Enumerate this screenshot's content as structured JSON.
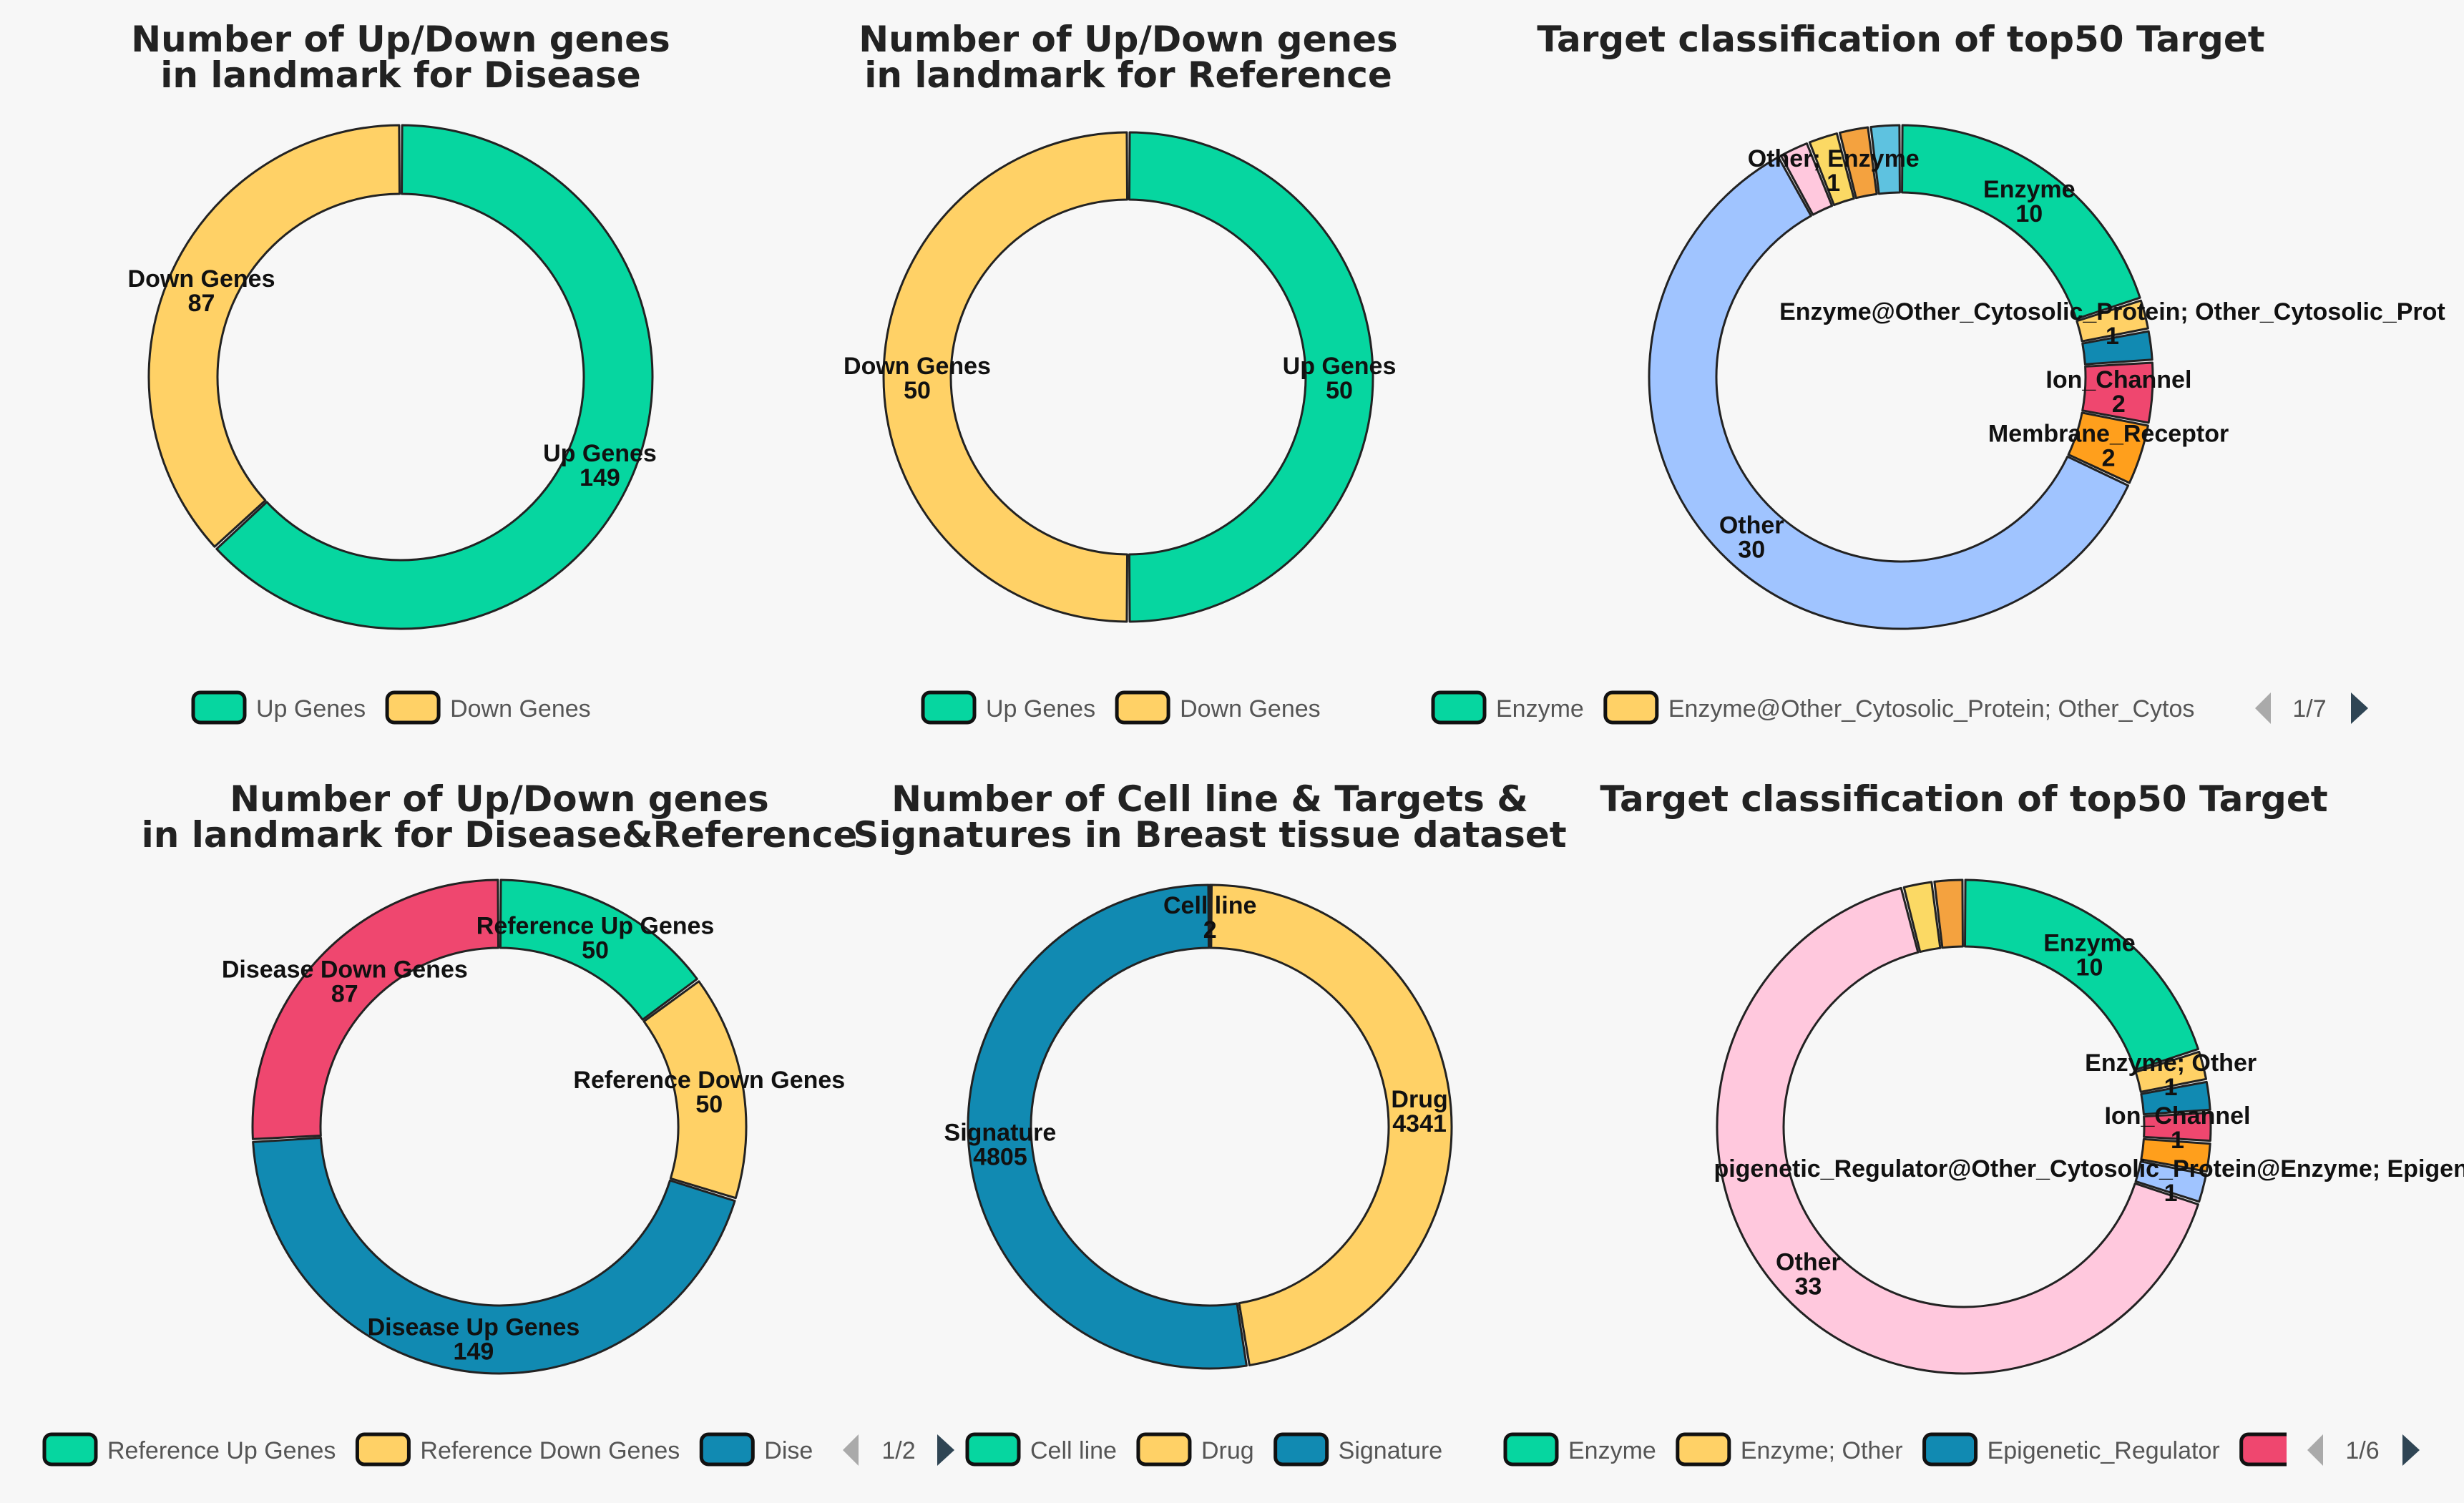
{
  "chart_data": [
    {
      "type": "pie",
      "variant": "donut",
      "title": [
        "Number of Up/Down genes",
        "in landmark for Disease"
      ],
      "segments": [
        {
          "name": "Up Genes",
          "value": 149,
          "color": "#06d6a0"
        },
        {
          "name": "Down Genes",
          "value": 87,
          "color": "#ffd166"
        }
      ],
      "legend": [
        {
          "label": "Up Genes",
          "color": "#06d6a0"
        },
        {
          "label": "Down Genes",
          "color": "#ffd166"
        }
      ],
      "legend_page": null
    },
    {
      "type": "pie",
      "variant": "donut",
      "title": [
        "Number of Up/Down genes",
        "in landmark for Reference"
      ],
      "segments": [
        {
          "name": "Up Genes",
          "value": 50,
          "color": "#06d6a0"
        },
        {
          "name": "Down Genes",
          "value": 50,
          "color": "#ffd166"
        }
      ],
      "legend": [
        {
          "label": "Up Genes",
          "color": "#06d6a0"
        },
        {
          "label": "Down Genes",
          "color": "#ffd166"
        }
      ],
      "legend_page": null
    },
    {
      "type": "pie",
      "variant": "donut",
      "title": [
        "Target classification of top50 Target"
      ],
      "segments": [
        {
          "name": "Enzyme",
          "value": 10,
          "color": "#06d6a0"
        },
        {
          "name": "Enzyme@Other_Cytosolic_Protein; Other_Cytosolic_Prot",
          "value": 1,
          "color": "#ffd166"
        },
        {
          "name": "",
          "value": 1,
          "color": "#118ab2"
        },
        {
          "name": "Ion_Channel",
          "value": 2,
          "color": "#ef476f"
        },
        {
          "name": "Membrane_Receptor",
          "value": 2,
          "color": "#ff9f1c"
        },
        {
          "name": "Other",
          "value": 30,
          "color": "#a0c4ff"
        },
        {
          "name": "",
          "value": 1,
          "color": "#ffc8dd"
        },
        {
          "name": "Other; Enzyme",
          "value": 1,
          "color": "#fbd964"
        },
        {
          "name": "",
          "value": 1,
          "color": "#f4a23f"
        },
        {
          "name": "",
          "value": 1,
          "color": "#5ec2e0"
        }
      ],
      "legend": [
        {
          "label": "Enzyme",
          "color": "#06d6a0"
        },
        {
          "label": "Enzyme@Other_Cytosolic_Protein; Other_Cytos",
          "color": "#ffd166"
        }
      ],
      "legend_page": "1/7"
    },
    {
      "type": "pie",
      "variant": "donut",
      "title": [
        "Number of Up/Down genes",
        "in landmark for Disease&Reference"
      ],
      "segments": [
        {
          "name": "Reference Up Genes",
          "value": 50,
          "color": "#06d6a0"
        },
        {
          "name": "Reference Down Genes",
          "value": 50,
          "color": "#ffd166"
        },
        {
          "name": "Disease Up Genes",
          "value": 149,
          "color": "#118ab2"
        },
        {
          "name": "Disease Down Genes",
          "value": 87,
          "color": "#ef476f"
        }
      ],
      "legend": [
        {
          "label": "Reference Up Genes",
          "color": "#06d6a0"
        },
        {
          "label": "Reference Down Genes",
          "color": "#ffd166"
        },
        {
          "label": "Dise",
          "color": "#118ab2"
        }
      ],
      "legend_page": "1/2"
    },
    {
      "type": "pie",
      "variant": "donut",
      "title": [
        "Number of Cell line & Targets &",
        "Signatures in Breast tissue dataset"
      ],
      "segments": [
        {
          "name": "Cell line",
          "value": 2,
          "color": "#06d6a0"
        },
        {
          "name": "Drug",
          "value": 4341,
          "color": "#ffd166"
        },
        {
          "name": "Signature",
          "value": 4805,
          "color": "#118ab2"
        }
      ],
      "legend": [
        {
          "label": "Cell line",
          "color": "#06d6a0"
        },
        {
          "label": "Drug",
          "color": "#ffd166"
        },
        {
          "label": "Signature",
          "color": "#118ab2"
        }
      ],
      "legend_page": null
    },
    {
      "type": "pie",
      "variant": "donut",
      "title": [
        "Target classification of top50 Target"
      ],
      "segments": [
        {
          "name": "Enzyme",
          "value": 10,
          "color": "#06d6a0"
        },
        {
          "name": "Enzyme; Other",
          "value": 1,
          "color": "#ffd166"
        },
        {
          "name": "",
          "value": 1,
          "color": "#118ab2"
        },
        {
          "name": "Ion_Channel",
          "value": 1,
          "color": "#ef476f"
        },
        {
          "name": "",
          "value": 1,
          "color": "#ff9f1c"
        },
        {
          "name": "pigenetic_Regulator@Other_Cytosolic_Protein@Enzyme; Epigenetic_Regulato",
          "value": 1,
          "color": "#a0c4ff"
        },
        {
          "name": "Other",
          "value": 33,
          "color": "#ffc8dd"
        },
        {
          "name": "",
          "value": 1,
          "color": "#fbd964"
        },
        {
          "name": "",
          "value": 1,
          "color": "#f4a23f"
        }
      ],
      "legend": [
        {
          "label": "Enzyme",
          "color": "#06d6a0"
        },
        {
          "label": "Enzyme; Other",
          "color": "#ffd166"
        },
        {
          "label": "Epigenetic_Regulator",
          "color": "#118ab2"
        },
        {
          "label": "",
          "color": "#ef476f"
        }
      ],
      "legend_page": "1/6"
    }
  ]
}
